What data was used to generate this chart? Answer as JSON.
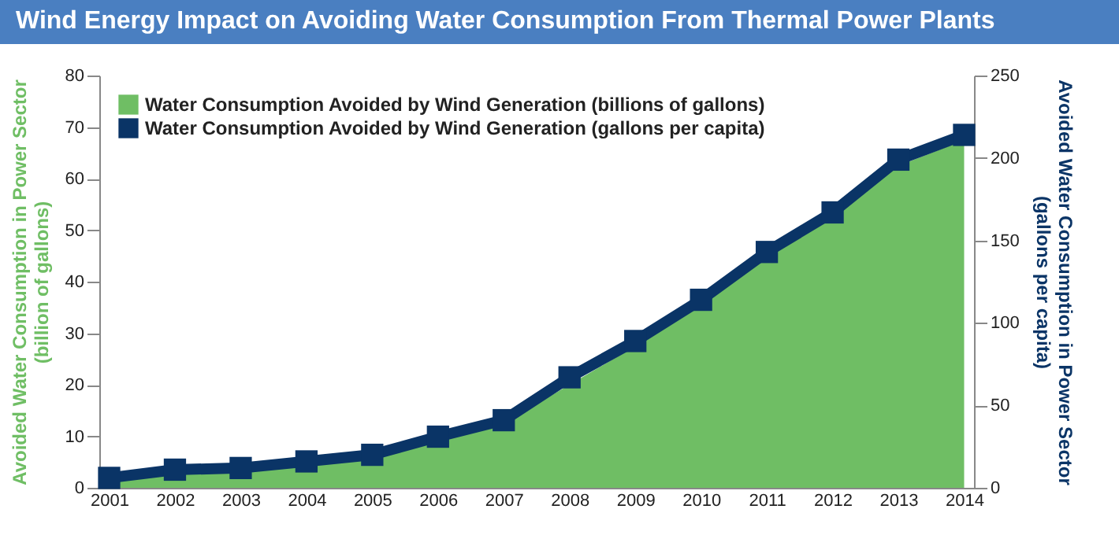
{
  "chart_data": {
    "type": "line",
    "title": "Wind Energy Impact on Avoiding Water Consumption From Thermal Power Plants",
    "categories": [
      "2001",
      "2002",
      "2003",
      "2004",
      "2005",
      "2006",
      "2007",
      "2008",
      "2009",
      "2010",
      "2011",
      "2012",
      "2013",
      "2014"
    ],
    "series": [
      {
        "name": "Water Consumption Avoided by Wind Generation (billions of gallons)",
        "type": "area",
        "color": "#6fbe64",
        "values": [
          1.5,
          3,
          3.3,
          4.5,
          6,
          9,
          12.5,
          20,
          27.5,
          35.5,
          45,
          52.5,
          62.5,
          67.5
        ]
      },
      {
        "name": "Water Consumption Avoided by Wind Generation (gallons per capita)",
        "axis": "y2",
        "color": "#0a3466",
        "marker": "square",
        "values": [
          6,
          11,
          12,
          16,
          20,
          31,
          41,
          67,
          89,
          114,
          143,
          167,
          199,
          214
        ]
      }
    ],
    "ylabel": "Avoided Water Consumption in Power Sector\n(billion of gallons)",
    "y2label": "Avoided Water Consumption in Power Sector\n(gallons per capita)",
    "ylim": [
      0,
      80
    ],
    "yticks": [
      0,
      10,
      20,
      30,
      40,
      50,
      60,
      70,
      80
    ],
    "y2lim": [
      0,
      250
    ],
    "y2ticks": [
      0,
      50,
      100,
      150,
      200,
      250
    ],
    "legend": "top left",
    "grid": false
  }
}
